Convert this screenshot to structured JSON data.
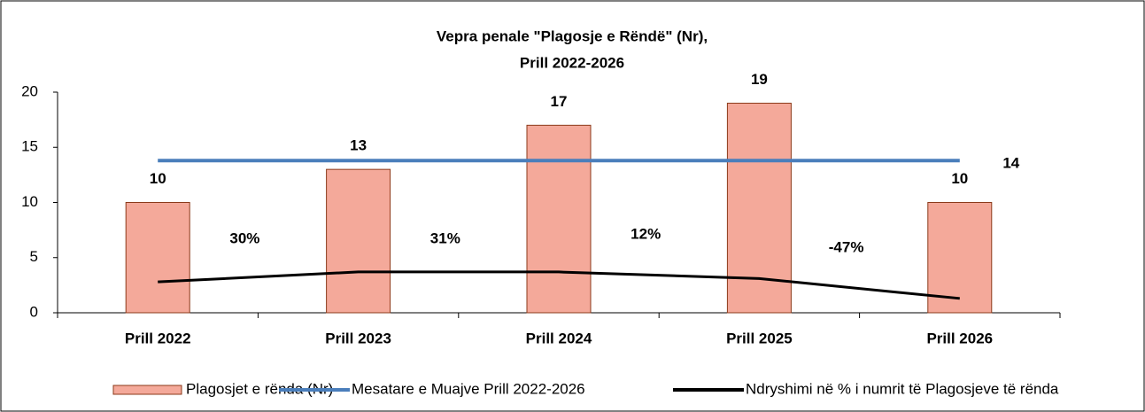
{
  "chart_data": {
    "type": "bar",
    "title": [
      "Vepra penale \"Plagosje e Rëndë\" (Nr),",
      "Prill 2022-2026"
    ],
    "categories": [
      "Prill 2022",
      "Prill 2023",
      "Prill 2024",
      "Prill 2025",
      "Prill 2026"
    ],
    "ylim": [
      0,
      20
    ],
    "yticks": [
      0,
      5,
      10,
      15,
      20
    ],
    "grid": false,
    "legend": "bottom",
    "series": [
      {
        "name": "Plagosjet e rënda (Nr)",
        "type": "bar",
        "color": "#f4a99a",
        "values": [
          10,
          13,
          17,
          19,
          10
        ]
      },
      {
        "name": "Mesatare e Muajve Prill 2022-2026",
        "type": "hline",
        "color": "#4a7ebb",
        "value": 13.8,
        "value_label": "14"
      },
      {
        "name": "Ndryshimi në % i numrit të Plagosjeve të rënda",
        "type": "line",
        "color": "#000000",
        "values": [
          2.8,
          3.7,
          3.7,
          3.1,
          1.3
        ],
        "change_values": [
          30,
          31,
          12,
          -47
        ],
        "change_labels": [
          "30%",
          "31%",
          "12%",
          "-47%"
        ]
      }
    ]
  }
}
